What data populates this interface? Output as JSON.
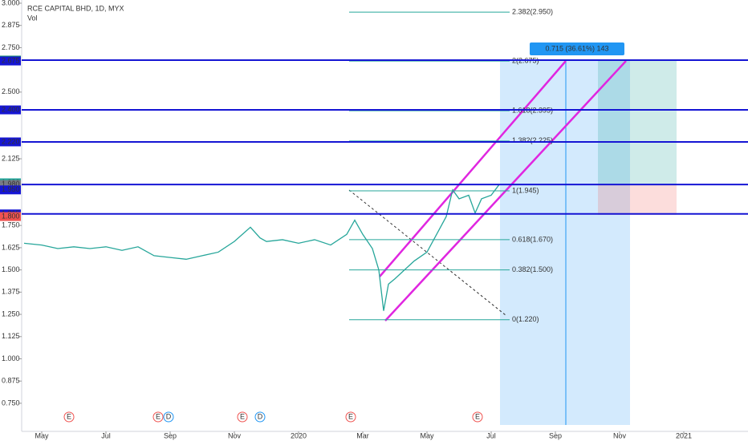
{
  "chart_data": {
    "type": "line",
    "title": "RCE CAPITAL BHD, 1D, MYX",
    "subtitle": "Vol",
    "series": [
      {
        "name": "RCE CAPITAL BHD",
        "color": "#26a69a",
        "x": [
          -0.55,
          0,
          0.5,
          1,
          1.5,
          2,
          2.5,
          3,
          3.5,
          4,
          4.5,
          5,
          5.5,
          6,
          6.5,
          6.8,
          7,
          7.5,
          8,
          8.5,
          9,
          9.5,
          9.75,
          10,
          10.3,
          10.5,
          10.65,
          10.8,
          11,
          11.3,
          11.6,
          12,
          12.3,
          12.6,
          12.8,
          13,
          13.3,
          13.5,
          13.7,
          14,
          14.25
        ],
        "values": [
          1.65,
          1.64,
          1.62,
          1.63,
          1.62,
          1.63,
          1.61,
          1.63,
          1.58,
          1.57,
          1.56,
          1.58,
          1.6,
          1.66,
          1.74,
          1.68,
          1.66,
          1.67,
          1.65,
          1.67,
          1.64,
          1.7,
          1.78,
          1.7,
          1.62,
          1.5,
          1.27,
          1.42,
          1.45,
          1.5,
          1.55,
          1.6,
          1.7,
          1.8,
          1.95,
          1.9,
          1.92,
          1.82,
          1.9,
          1.92,
          1.98
        ]
      }
    ],
    "xlim": [
      -0.625,
      22
    ],
    "xticks": [
      {
        "value": 0,
        "label": "May"
      },
      {
        "value": 2,
        "label": "Jul"
      },
      {
        "value": 4,
        "label": "Sep"
      },
      {
        "value": 6,
        "label": "Nov"
      },
      {
        "value": 8,
        "label": "2020"
      },
      {
        "value": 10,
        "label": "Mar"
      },
      {
        "value": 12,
        "label": "May"
      },
      {
        "value": 14,
        "label": "Jul"
      },
      {
        "value": 16,
        "label": "Sep"
      },
      {
        "value": 18,
        "label": "Nov"
      },
      {
        "value": 20,
        "label": "2021"
      }
    ],
    "ylim": [
      0.628,
      3.018
    ],
    "yticks": [
      {
        "value": 3,
        "label": "3.000"
      },
      {
        "value": 2.875,
        "label": "2.875"
      },
      {
        "value": 2.75,
        "label": "2.750"
      },
      {
        "value": 2.5,
        "label": "2.500"
      },
      {
        "value": 2.125,
        "label": "2.125"
      },
      {
        "value": 1.75,
        "label": "1.750"
      },
      {
        "value": 1.625,
        "label": "1.625"
      },
      {
        "value": 1.5,
        "label": "1.500"
      },
      {
        "value": 1.375,
        "label": "1.375"
      },
      {
        "value": 1.25,
        "label": "1.250"
      },
      {
        "value": 1.125,
        "label": "1.125"
      },
      {
        "value": 1,
        "label": "1.000"
      },
      {
        "value": 0.875,
        "label": "0.875"
      },
      {
        "value": 0.75,
        "label": "0.750"
      }
    ],
    "levels": [
      2.68,
      2.4,
      2.22,
      1.98,
      1.815
    ],
    "level_color": "#1515d4",
    "price_tags": [
      {
        "value": 2.68,
        "label": "2.680",
        "color": "#138a70"
      },
      {
        "value": 2.675,
        "label": "2.675",
        "color": "#1515d4"
      },
      {
        "value": 2.4,
        "label": "2.400",
        "color": "#1515d4"
      },
      {
        "value": 2.22,
        "label": "2.220",
        "color": "#1515d4"
      },
      {
        "value": 1.99,
        "label": "1.990",
        "color": "#26a69a"
      },
      {
        "value": 1.98,
        "label": "1.980",
        "color": "#787b86"
      },
      {
        "value": 1.95,
        "label": "1.950",
        "color": "#1515d4"
      },
      {
        "value": 1.815,
        "label": "1.815",
        "color": "#1515d4"
      },
      {
        "value": 1.8,
        "label": "1.800",
        "color": "#ef5350"
      }
    ],
    "fib_levels": [
      {
        "value": 2.95,
        "label": "2.382(2.950)"
      },
      {
        "value": 2.675,
        "label": "2(2.675)"
      },
      {
        "value": 2.395,
        "label": "1.618(2.395)"
      },
      {
        "value": 2.225,
        "label": "1.382(2.225)"
      },
      {
        "value": 1.945,
        "label": "1(1.945)"
      },
      {
        "value": 1.67,
        "label": "0.618(1.670)"
      },
      {
        "value": 1.5,
        "label": "0.382(1.500)"
      },
      {
        "value": 1.22,
        "label": "0(1.220)"
      }
    ],
    "fib_color": "#26a69a",
    "measure_label": "0.715 (36.61%) 143",
    "events": [
      {
        "label": "E",
        "x": 0.85
      },
      {
        "label": "E",
        "x": 3.625
      },
      {
        "label": "D",
        "x": 3.95
      },
      {
        "label": "E",
        "x": 6.25
      },
      {
        "label": "D",
        "x": 6.8
      },
      {
        "label": "E",
        "x": 9.625
      },
      {
        "label": "E",
        "x": 13.575
      }
    ]
  }
}
